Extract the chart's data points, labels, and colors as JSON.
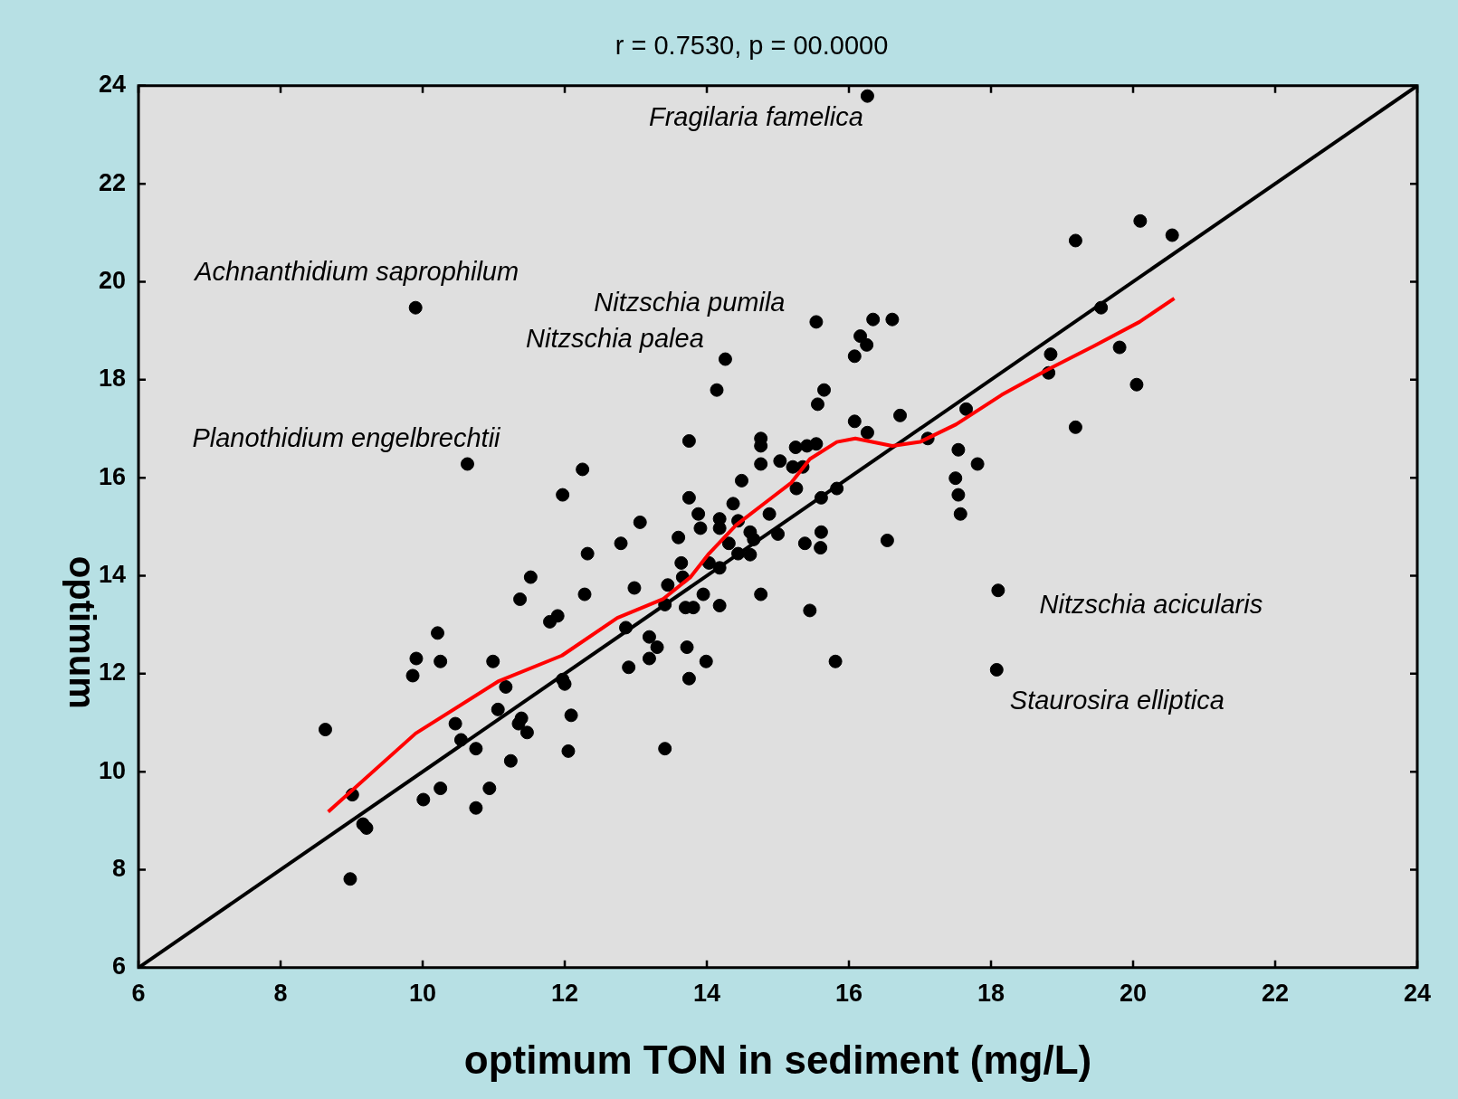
{
  "chart_data": {
    "type": "scatter",
    "title": "r = 0.7530, p = 00.0000",
    "xlabel": "optimum TON in sediment (mg/L)",
    "ylabel": "optimum",
    "xlim": [
      6,
      24
    ],
    "ylim": [
      6,
      24
    ],
    "xticks": [
      6,
      8,
      10,
      12,
      14,
      16,
      18,
      20,
      22,
      24
    ],
    "yticks": [
      6,
      8,
      10,
      12,
      14,
      16,
      18,
      20,
      22,
      24
    ],
    "series": [
      {
        "marker": "circle",
        "color": "#000000",
        "x": [
          16.26,
          9.9,
          10.63,
          14.26,
          14.14,
          15.54,
          19.19,
          20.1,
          20.55,
          19.55,
          18.84,
          19.81,
          18.81,
          20.05,
          19.19,
          17.65,
          17.81,
          17.54,
          17.5,
          17.54,
          17.57,
          17.11,
          16.72,
          16.34,
          16.61,
          16.16,
          16.25,
          16.08,
          15.65,
          15.56,
          16.08,
          16.26,
          15.83,
          15.61,
          15.61,
          15.6,
          15.38,
          15.45,
          15.81,
          16.54,
          18.1,
          18.08,
          15.25,
          15.41,
          15.54,
          15.03,
          15.21,
          15.35,
          15.26,
          14.76,
          14.76,
          14.76,
          14.49,
          14.88,
          14.37,
          15.0,
          14.76,
          13.75,
          13.75,
          13.88,
          13.91,
          14.18,
          14.18,
          14.44,
          13.6,
          14.31,
          14.44,
          14.61,
          14.61,
          14.66,
          14.03,
          14.18,
          13.64,
          13.45,
          13.66,
          13.95,
          14.18,
          13.7,
          13.81,
          13.41,
          13.72,
          13.75,
          13.99,
          13.41,
          13.19,
          13.3,
          13.19,
          12.9,
          12.86,
          12.98,
          13.06,
          12.79,
          12.32,
          12.28,
          12.25,
          11.97,
          11.52,
          11.37,
          11.79,
          11.9,
          11.97,
          12.0,
          12.09,
          12.05,
          11.17,
          10.99,
          11.06,
          11.39,
          11.35,
          11.47,
          11.24,
          10.94,
          10.75,
          10.75,
          10.54,
          10.46,
          10.21,
          10.25,
          9.91,
          9.86,
          10.01,
          10.25,
          8.63,
          9.01,
          9.16,
          9.21,
          8.98
        ],
        "values": [
          23.79,
          19.47,
          16.28,
          18.42,
          17.79,
          19.18,
          20.84,
          21.24,
          20.95,
          19.47,
          18.52,
          18.66,
          18.14,
          17.9,
          17.03,
          17.4,
          16.28,
          16.57,
          15.99,
          15.65,
          15.26,
          16.8,
          17.27,
          19.23,
          19.23,
          18.89,
          18.71,
          18.48,
          17.79,
          17.5,
          17.15,
          16.92,
          15.78,
          15.59,
          14.89,
          14.57,
          14.66,
          13.29,
          12.25,
          14.72,
          13.7,
          12.08,
          16.62,
          16.65,
          16.69,
          16.34,
          16.22,
          16.22,
          15.78,
          16.8,
          16.65,
          16.28,
          15.94,
          15.26,
          15.47,
          14.85,
          13.62,
          16.75,
          15.59,
          15.26,
          14.97,
          15.16,
          14.97,
          15.12,
          14.78,
          14.66,
          14.45,
          14.43,
          14.89,
          14.74,
          14.26,
          14.16,
          14.26,
          13.81,
          13.97,
          13.62,
          13.39,
          13.35,
          13.35,
          13.41,
          12.54,
          11.9,
          12.25,
          10.47,
          12.75,
          12.54,
          12.31,
          12.13,
          12.94,
          13.75,
          15.09,
          14.66,
          14.45,
          13.62,
          16.17,
          15.65,
          13.97,
          13.52,
          13.06,
          13.18,
          11.88,
          11.79,
          11.15,
          10.42,
          11.73,
          12.25,
          11.27,
          11.09,
          10.98,
          10.8,
          10.22,
          9.66,
          9.26,
          10.47,
          10.65,
          10.98,
          12.83,
          12.25,
          12.31,
          11.96,
          9.43,
          9.66,
          10.86,
          9.53,
          8.93,
          8.85,
          7.81
        ]
      },
      {
        "type": "line",
        "color": "#000000",
        "x": [
          6,
          24
        ],
        "values": [
          6,
          24
        ]
      },
      {
        "type": "line",
        "color": "#ff0000",
        "x": [
          8.67,
          9.9,
          11.06,
          11.96,
          12.74,
          13.38,
          13.77,
          14.03,
          14.41,
          14.93,
          15.19,
          15.45,
          15.83,
          16.09,
          16.61,
          17.0,
          17.51,
          18.15,
          18.8,
          19.45,
          20.09,
          20.58
        ],
        "values": [
          9.18,
          10.78,
          11.84,
          12.37,
          13.14,
          13.52,
          13.97,
          14.45,
          15.03,
          15.61,
          15.9,
          16.38,
          16.73,
          16.8,
          16.65,
          16.73,
          17.09,
          17.69,
          18.21,
          18.69,
          19.18,
          19.66
        ]
      }
    ],
    "annotations": [
      {
        "text": "Fragilaria famelica",
        "x": 16.26,
        "y": 23.79
      },
      {
        "text": "Achnanthidium saprophilum",
        "x": 9.9,
        "y": 19.47
      },
      {
        "text": "Nitzschia pumila",
        "x": 15.54,
        "y": 19.18
      },
      {
        "text": "Nitzschia palea",
        "x": 14.26,
        "y": 18.42
      },
      {
        "text": "Planothidium engelbrechtii",
        "x": 10.63,
        "y": 16.28
      },
      {
        "text": "Nitzschia acicularis",
        "x": 18.1,
        "y": 13.7
      },
      {
        "text": "Staurosira elliptica",
        "x": 18.08,
        "y": 12.08
      }
    ]
  }
}
